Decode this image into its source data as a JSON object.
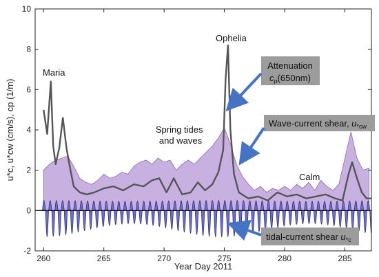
{
  "chart_data": {
    "type": "area",
    "xlabel": "Year Day 2011",
    "ylabel": "u*c, u*cw (cm/s), cp (1/m)",
    "xlim": [
      259.3,
      287.2
    ],
    "ylim": [
      -2,
      10
    ],
    "x_ticks": [
      "260",
      "265",
      "270",
      "275",
      "280",
      "285"
    ],
    "y_ticks": [
      "-2",
      "0",
      "2",
      "4",
      "6",
      "8",
      "10"
    ],
    "grid": false,
    "colors": {
      "wave_current_fill": "#c8b0e0",
      "wave_current_edge": "#8a6aaa",
      "tidal_fill": "#6b6bd6",
      "tidal_edge": "#2a2a6a",
      "attenuation_line": "#555555",
      "callout_box": "#9c9c9c",
      "arrow": "#4472c4"
    },
    "series": [
      {
        "name": "Attenuation cp(650nm)",
        "x": [
          260.0,
          260.3,
          260.6,
          260.8,
          261.0,
          261.3,
          261.6,
          261.9,
          262.2,
          262.5,
          263.0,
          263.6,
          264.2,
          265.0,
          265.8,
          266.6,
          267.5,
          268.3,
          269.0,
          269.6,
          270.2,
          270.8,
          271.5,
          272.2,
          272.8,
          273.4,
          274.0,
          274.5,
          274.9,
          275.1,
          275.3,
          275.5,
          275.8,
          276.2,
          277.0,
          277.8,
          278.6,
          279.4,
          280.2,
          281.0,
          281.8,
          282.6,
          283.4,
          284.2,
          284.8,
          285.3,
          285.6,
          286.0,
          286.4,
          286.8,
          287.2
        ],
        "y": [
          5.0,
          3.8,
          6.4,
          3.2,
          2.3,
          3.1,
          4.6,
          3.1,
          2.1,
          1.2,
          0.9,
          0.8,
          0.9,
          1.1,
          1.2,
          1.0,
          1.3,
          1.2,
          1.5,
          1.6,
          0.9,
          1.6,
          0.8,
          0.9,
          1.4,
          1.0,
          1.3,
          1.9,
          3.0,
          6.5,
          8.2,
          4.0,
          1.8,
          0.9,
          0.6,
          0.7,
          0.5,
          0.9,
          0.7,
          0.8,
          0.6,
          0.7,
          0.8,
          0.6,
          0.5,
          1.8,
          2.4,
          1.6,
          0.9,
          0.6,
          0.6
        ]
      },
      {
        "name": "Wave-current shear, u*cw",
        "x": [
          260.0,
          260.5,
          261.0,
          261.5,
          262.0,
          262.5,
          263.0,
          263.5,
          264.0,
          264.5,
          265.0,
          265.5,
          266.0,
          266.5,
          267.0,
          267.5,
          268.0,
          268.5,
          269.0,
          269.5,
          270.0,
          270.5,
          271.0,
          271.5,
          272.0,
          272.5,
          273.0,
          273.5,
          274.0,
          274.5,
          275.0,
          275.5,
          276.0,
          276.5,
          277.0,
          277.5,
          278.0,
          278.5,
          279.0,
          279.5,
          280.0,
          280.5,
          281.0,
          281.5,
          282.0,
          282.5,
          283.0,
          283.5,
          284.0,
          284.5,
          285.0,
          285.5,
          286.0,
          286.5,
          287.0
        ],
        "y": [
          2.0,
          2.3,
          2.5,
          2.6,
          2.7,
          2.2,
          1.6,
          1.4,
          1.3,
          1.5,
          1.8,
          1.6,
          1.7,
          1.9,
          1.8,
          2.2,
          2.4,
          2.5,
          2.3,
          2.6,
          2.4,
          2.5,
          2.0,
          2.3,
          2.5,
          2.3,
          2.6,
          2.9,
          3.2,
          3.6,
          4.1,
          3.3,
          2.3,
          1.7,
          1.3,
          1.0,
          1.2,
          0.9,
          1.1,
          1.0,
          1.2,
          1.0,
          1.3,
          1.1,
          1.4,
          1.0,
          1.5,
          1.2,
          1.0,
          1.3,
          2.6,
          3.9,
          2.6,
          2.0,
          2.1
        ]
      },
      {
        "name": "tidal-current shear u*c",
        "x_start": 259.9,
        "x_end": 287.2,
        "period_days": 0.5175,
        "positive_peak": 0.5,
        "negative_peak": -1.3
      }
    ],
    "annotations": [
      {
        "name": "storm-maria",
        "text": "Maria"
      },
      {
        "name": "storm-ophelia",
        "text": "Ophelia"
      },
      {
        "name": "spring-tides",
        "text": "Spring tides and waves"
      },
      {
        "name": "calm",
        "text": "Calm"
      },
      {
        "name": "attenuation-callout",
        "text": "Attenuation cp(650nm)"
      },
      {
        "name": "wave-current-callout",
        "text": "Wave-current shear, u*cw"
      },
      {
        "name": "tidal-callout",
        "text": "tidal-current shear u*c"
      }
    ]
  }
}
